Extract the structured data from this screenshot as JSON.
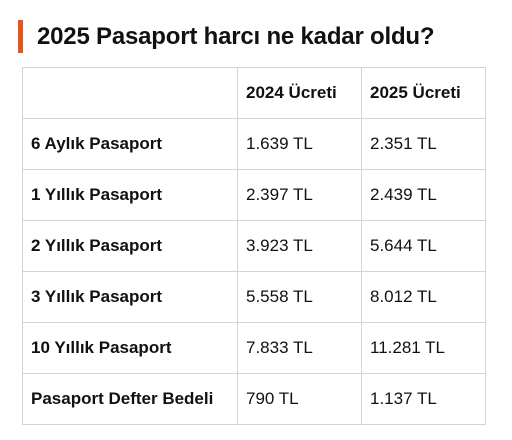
{
  "page": {
    "title": "2025 Pasaport harcı ne kadar oldu?",
    "accent_color": "#e8531e"
  },
  "table": {
    "headers": [
      "",
      "2024 Ücreti",
      "2025 Ücreti"
    ],
    "rows": [
      {
        "label": "6 Aylık Pasaport",
        "fee_2024": "1.639 TL",
        "fee_2025": "2.351 TL"
      },
      {
        "label": "1 Yıllık Pasaport",
        "fee_2024": "2.397 TL",
        "fee_2025": "2.439 TL"
      },
      {
        "label": "2 Yıllık Pasaport",
        "fee_2024": "3.923 TL",
        "fee_2025": "5.644 TL"
      },
      {
        "label": "3 Yıllık Pasaport",
        "fee_2024": "5.558 TL",
        "fee_2025": "8.012 TL"
      },
      {
        "label": "10 Yıllık Pasaport",
        "fee_2024": "7.833 TL",
        "fee_2025": "11.281 TL"
      },
      {
        "label": "Pasaport Defter Bedeli",
        "fee_2024": "790 TL",
        "fee_2025": "1.137 TL"
      }
    ]
  }
}
